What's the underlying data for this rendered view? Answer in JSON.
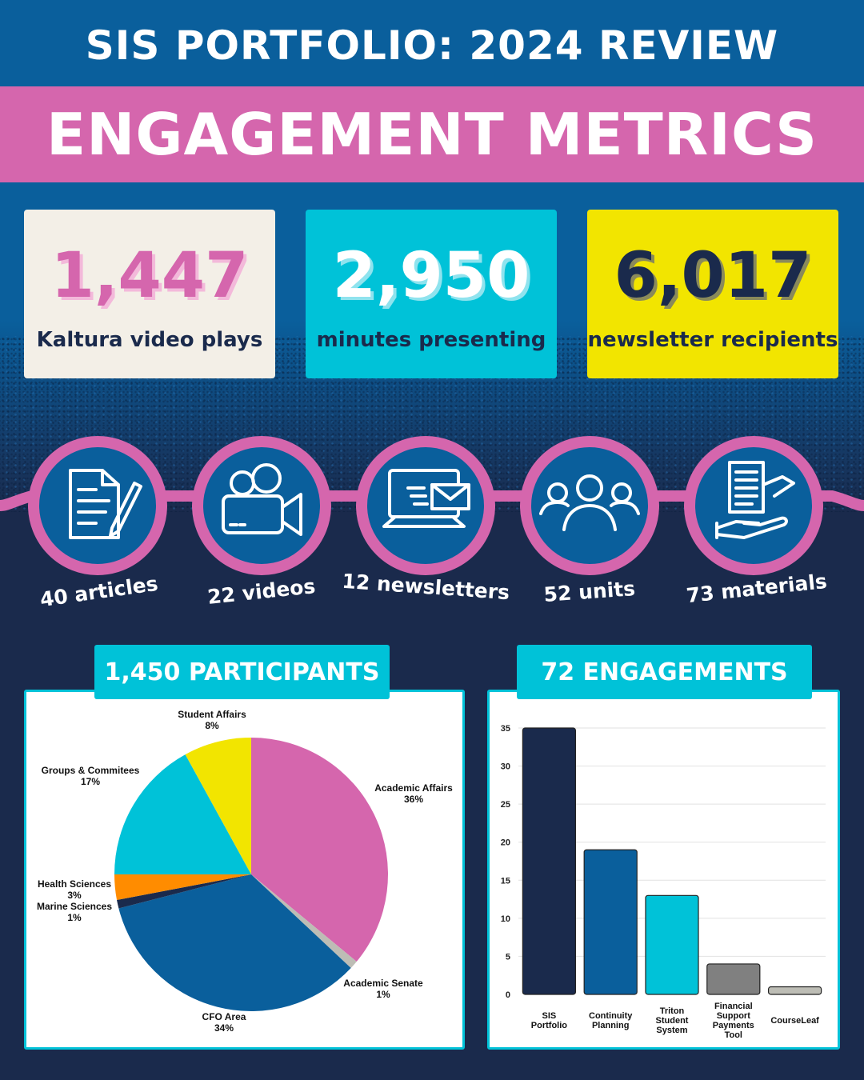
{
  "header": {
    "title": "SIS PORTFOLIO: 2024 REVIEW",
    "banner": "ENGAGEMENT METRICS"
  },
  "stats": [
    {
      "value": "1,447",
      "label": "Kaltura video plays"
    },
    {
      "value": "2,950",
      "label": "minutes presenting"
    },
    {
      "value": "6,017",
      "label": "newsletter recipients"
    }
  ],
  "icons": [
    {
      "icon": "document-pen-icon",
      "label": "40 articles"
    },
    {
      "icon": "video-camera-icon",
      "label": "22 videos"
    },
    {
      "icon": "laptop-mail-icon",
      "label": "12 newsletters"
    },
    {
      "icon": "people-group-icon",
      "label": "52 units"
    },
    {
      "icon": "document-handout-icon",
      "label": "73 materials"
    }
  ],
  "colors": {
    "blue": "#0a5f9c",
    "navy": "#1a2a4c",
    "pink": "#d566ad",
    "cyan": "#00c2d8",
    "yellow": "#f2e500"
  },
  "pie_header": "1,450 PARTICIPANTS",
  "bar_header": "72 ENGAGEMENTS",
  "chart_data": [
    {
      "type": "pie",
      "slices": [
        {
          "name": "Academic Affairs",
          "label": "36%",
          "value": 36,
          "color": "#d566ad"
        },
        {
          "name": "Academic Senate",
          "label": "1%",
          "value": 1,
          "color": "#bdbdb5"
        },
        {
          "name": "CFO Area",
          "label": "34%",
          "value": 34,
          "color": "#0a5f9c"
        },
        {
          "name": "Marine Sciences",
          "label": "1%",
          "value": 1,
          "color": "#1a2a4c"
        },
        {
          "name": "Health Sciences",
          "label": "3%",
          "value": 3,
          "color": "#ff8c00"
        },
        {
          "name": "Groups & Commitees",
          "label": "17%",
          "value": 17,
          "color": "#00c2d8"
        },
        {
          "name": "Student Affairs",
          "label": "8%",
          "value": 8,
          "color": "#f2e500"
        }
      ]
    },
    {
      "type": "bar",
      "categories": [
        [
          "SIS",
          "Portfolio"
        ],
        [
          "Continuity",
          "Planning"
        ],
        [
          "Triton",
          "Student",
          "System"
        ],
        [
          "Financial",
          "Support",
          "Payments",
          "Tool"
        ],
        [
          "CourseLeaf"
        ]
      ],
      "values": [
        35,
        19,
        13,
        4,
        1
      ],
      "colors": [
        "#1a2a4c",
        "#0a5f9c",
        "#00c2d8",
        "#808080",
        "#bdbdb5"
      ],
      "ylim": [
        0,
        35
      ],
      "yticks": [
        0,
        5,
        10,
        15,
        20,
        25,
        30,
        35
      ],
      "grid": true
    }
  ]
}
